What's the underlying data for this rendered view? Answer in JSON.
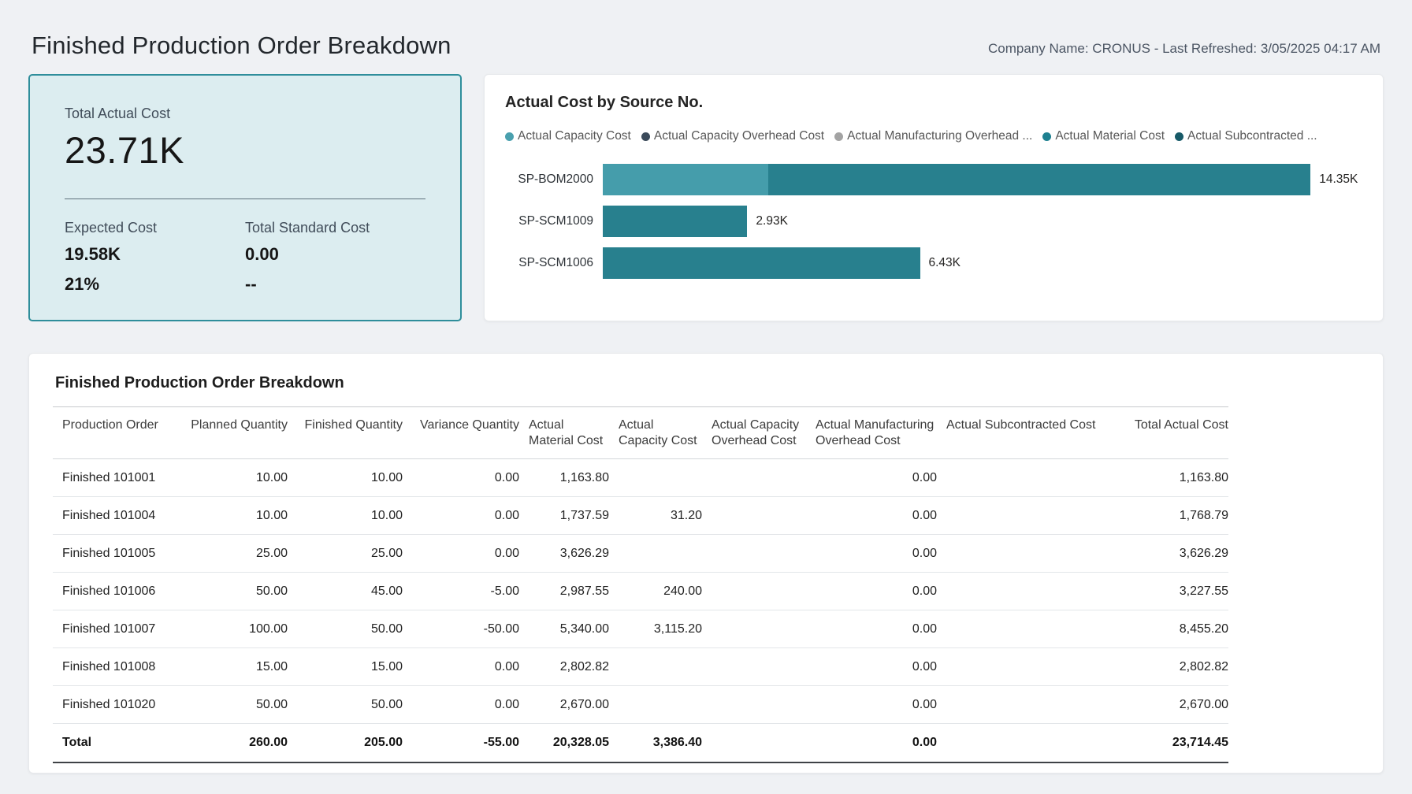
{
  "header": {
    "title": "Finished Production Order Breakdown",
    "company_info": "Company Name: CRONUS - Last Refreshed: 3/05/2025 04:17 AM"
  },
  "kpi": {
    "title": "Total Actual Cost",
    "value": "23.71K",
    "expected_label": "Expected Cost",
    "expected_value": "19.58K",
    "expected_pct": "21%",
    "standard_label": "Total Standard Cost",
    "standard_value": "0.00",
    "standard_pct": "--"
  },
  "chart": {
    "title": "Actual Cost by Source No.",
    "legend": [
      {
        "label": "Actual Capacity Cost",
        "color": "#4AA0AE"
      },
      {
        "label": "Actual Capacity Overhead Cost",
        "color": "#3B4A5A"
      },
      {
        "label": "Actual Manufacturing Overhead ...",
        "color": "#A3A3A3"
      },
      {
        "label": "Actual Material Cost",
        "color": "#1E8090"
      },
      {
        "label": "Actual Subcontracted ...",
        "color": "#175A68"
      }
    ]
  },
  "chart_data": {
    "type": "bar",
    "orientation": "horizontal",
    "title": "Actual Cost by Source No.",
    "categories": [
      "SP-BOM2000",
      "SP-SCM1009",
      "SP-SCM1006"
    ],
    "series": [
      {
        "name": "Actual Capacity Cost",
        "color": "#459DAB",
        "values": [
          3355.2,
          0,
          0
        ]
      },
      {
        "name": "Actual Capacity Overhead Cost",
        "color": "#3B4A5A",
        "values": [
          0,
          0,
          0
        ]
      },
      {
        "name": "Actual Manufacturing Overhead Cost",
        "color": "#A3A3A3",
        "values": [
          0,
          0,
          0
        ]
      },
      {
        "name": "Actual Material Cost",
        "color": "#28808E",
        "values": [
          10993.85,
          2930,
          6430
        ]
      },
      {
        "name": "Actual Subcontracted Cost",
        "color": "#175A68",
        "values": [
          0,
          0,
          0
        ]
      }
    ],
    "totals": [
      14349.05,
      2930,
      6430
    ],
    "value_labels": [
      "14.35K",
      "2.93K",
      "6.43K"
    ],
    "xmax": 15400,
    "grid": false,
    "legend_position": "top"
  },
  "table": {
    "title": "Finished Production Order Breakdown",
    "columns": [
      "Production Order",
      "Planned Quantity",
      "Finished Quantity",
      "Variance Quantity",
      "Actual Material Cost",
      "Actual Capacity Cost",
      "Actual Capacity Overhead Cost",
      "Actual Manufacturing Overhead Cost",
      "Actual Subcontracted Cost",
      "Total Actual Cost"
    ],
    "rows": [
      [
        "Finished 101001",
        "10.00",
        "10.00",
        "0.00",
        "1,163.80",
        "",
        "",
        "0.00",
        "",
        "1,163.80"
      ],
      [
        "Finished 101004",
        "10.00",
        "10.00",
        "0.00",
        "1,737.59",
        "31.20",
        "",
        "0.00",
        "",
        "1,768.79"
      ],
      [
        "Finished 101005",
        "25.00",
        "25.00",
        "0.00",
        "3,626.29",
        "",
        "",
        "0.00",
        "",
        "3,626.29"
      ],
      [
        "Finished 101006",
        "50.00",
        "45.00",
        "-5.00",
        "2,987.55",
        "240.00",
        "",
        "0.00",
        "",
        "3,227.55"
      ],
      [
        "Finished 101007",
        "100.00",
        "50.00",
        "-50.00",
        "5,340.00",
        "3,115.20",
        "",
        "0.00",
        "",
        "8,455.20"
      ],
      [
        "Finished 101008",
        "15.00",
        "15.00",
        "0.00",
        "2,802.82",
        "",
        "",
        "0.00",
        "",
        "2,802.82"
      ],
      [
        "Finished 101020",
        "50.00",
        "50.00",
        "0.00",
        "2,670.00",
        "",
        "",
        "0.00",
        "",
        "2,670.00"
      ]
    ],
    "total": [
      "Total",
      "260.00",
      "205.00",
      "-55.00",
      "20,328.05",
      "3,386.40",
      "",
      "0.00",
      "",
      "23,714.45"
    ]
  }
}
